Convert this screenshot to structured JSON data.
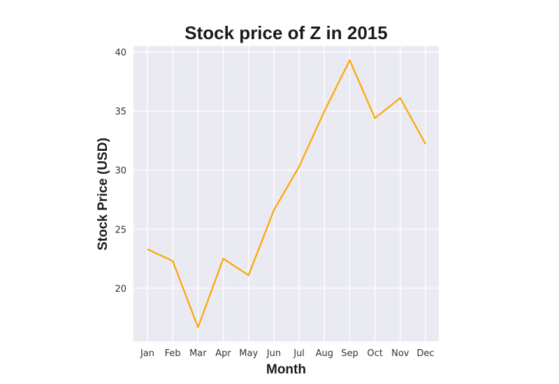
{
  "chart_data": {
    "type": "line",
    "title": "Stock price of Z in 2015",
    "xlabel": "Month",
    "ylabel": "Stock Price (USD)",
    "categories": [
      "Jan",
      "Feb",
      "Mar",
      "Apr",
      "May",
      "Jun",
      "Jul",
      "Aug",
      "Sep",
      "Oct",
      "Nov",
      "Dec"
    ],
    "series": [
      {
        "values": [
          23.3,
          22.3,
          16.7,
          22.5,
          21.1,
          26.6,
          30.3,
          35.0,
          39.3,
          34.4,
          36.1,
          32.2
        ]
      }
    ],
    "ylim": [
      15.5,
      40.5
    ],
    "yticks": [
      20,
      25,
      30,
      35,
      40
    ],
    "grid": true,
    "colors": {
      "line": "#FFA500",
      "plot_background": "#EAEAF2",
      "grid": "#FFFFFF"
    }
  }
}
